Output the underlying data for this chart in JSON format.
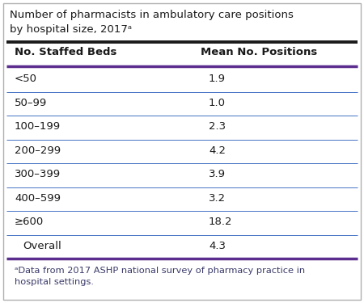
{
  "title_line1": "Number of pharmacists in ambulatory care positions",
  "title_line2": "by hospital size, 2017ᵃ",
  "col1_header": "No. Staffed Beds",
  "col2_header": "Mean No. Positions",
  "rows_clean": [
    [
      "<50",
      "1.9"
    ],
    [
      "50–99",
      "1.0"
    ],
    [
      "100–199",
      "2.3"
    ],
    [
      "200–299",
      "4.2"
    ],
    [
      "300–399",
      "3.9"
    ],
    [
      "400–599",
      "3.2"
    ],
    [
      "≥600",
      "18.2"
    ],
    [
      "Overall",
      "4.3"
    ]
  ],
  "footnote_line1": "ᵃData from 2017 ASHP national survey of pharmacy practice in",
  "footnote_line2": "hospital settings.",
  "border_color": "#b0b0b0",
  "thick_line_color": "#1a1a1a",
  "purple_line_color": "#5b2d8e",
  "blue_divider_color": "#4472c4",
  "background_color": "#ffffff",
  "title_fontsize": 9.5,
  "header_fontsize": 9.5,
  "data_fontsize": 9.5,
  "footnote_fontsize": 8.2
}
